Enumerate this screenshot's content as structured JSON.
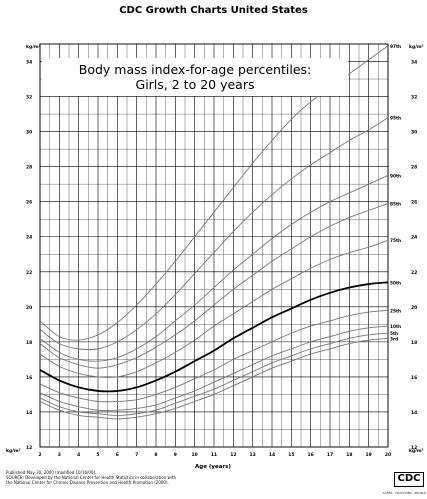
{
  "header": {
    "title": "CDC Growth Charts United States"
  },
  "chart_data": {
    "type": "line",
    "title": "Body mass index-for-age percentiles:",
    "subtitle": "Girls, 2 to 20 years",
    "xlabel": "Age (years)",
    "ylabel_top": "kg/m²",
    "ylabel_bottom": "kg/m²",
    "xlim": [
      2,
      20
    ],
    "ylim": [
      12,
      35
    ],
    "x_ticks": [
      2,
      3,
      4,
      5,
      6,
      7,
      8,
      9,
      10,
      11,
      12,
      13,
      14,
      15,
      16,
      17,
      18,
      19,
      20
    ],
    "y_ticks": [
      12,
      14,
      16,
      18,
      20,
      22,
      24,
      26,
      28,
      30,
      32,
      34
    ],
    "grid": true,
    "highlight_series": "50th",
    "series": [
      {
        "name": "97th",
        "x": [
          2,
          3,
          4,
          5,
          6,
          7,
          8,
          9,
          10,
          11,
          12,
          13,
          14,
          15,
          16,
          17,
          18,
          19,
          20
        ],
        "values": [
          19.2,
          18.3,
          18.1,
          18.4,
          19.1,
          20.1,
          21.3,
          22.6,
          24.0,
          25.4,
          26.8,
          28.2,
          29.5,
          30.7,
          31.7,
          32.5,
          33.3,
          34.1,
          34.9
        ]
      },
      {
        "name": "95th",
        "x": [
          2,
          3,
          4,
          5,
          6,
          7,
          8,
          9,
          10,
          11,
          12,
          13,
          14,
          15,
          16,
          17,
          18,
          19,
          20
        ],
        "values": [
          18.7,
          17.9,
          17.6,
          17.6,
          18.0,
          18.7,
          19.6,
          20.7,
          21.9,
          23.1,
          24.3,
          25.4,
          26.4,
          27.3,
          28.1,
          28.8,
          29.5,
          30.1,
          30.8
        ]
      },
      {
        "name": "90th",
        "x": [
          2,
          3,
          4,
          5,
          6,
          7,
          8,
          9,
          10,
          11,
          12,
          13,
          14,
          15,
          16,
          17,
          18,
          19,
          20
        ],
        "values": [
          18.2,
          17.4,
          17.0,
          16.9,
          17.1,
          17.6,
          18.3,
          19.2,
          20.1,
          21.1,
          22.1,
          23.0,
          23.9,
          24.7,
          25.4,
          26.0,
          26.5,
          27.0,
          27.5
        ]
      },
      {
        "name": "85th",
        "x": [
          2,
          3,
          4,
          5,
          6,
          7,
          8,
          9,
          10,
          11,
          12,
          13,
          14,
          15,
          16,
          17,
          18,
          19,
          20
        ],
        "values": [
          17.9,
          17.1,
          16.7,
          16.5,
          16.7,
          17.1,
          17.7,
          18.4,
          19.2,
          20.1,
          21.0,
          21.8,
          22.6,
          23.3,
          24.0,
          24.6,
          25.1,
          25.5,
          25.9
        ]
      },
      {
        "name": "75th",
        "x": [
          2,
          3,
          4,
          5,
          6,
          7,
          8,
          9,
          10,
          11,
          12,
          13,
          14,
          15,
          16,
          17,
          18,
          19,
          20
        ],
        "values": [
          17.3,
          16.6,
          16.2,
          16.0,
          16.0,
          16.3,
          16.8,
          17.4,
          18.1,
          18.9,
          19.6,
          20.3,
          21.0,
          21.6,
          22.2,
          22.7,
          23.1,
          23.4,
          23.8
        ]
      },
      {
        "name": "50th",
        "x": [
          2,
          3,
          4,
          5,
          6,
          7,
          8,
          9,
          10,
          11,
          12,
          13,
          14,
          15,
          16,
          17,
          18,
          19,
          20
        ],
        "values": [
          16.4,
          15.8,
          15.4,
          15.2,
          15.2,
          15.4,
          15.8,
          16.3,
          16.9,
          17.5,
          18.2,
          18.8,
          19.4,
          19.9,
          20.4,
          20.8,
          21.1,
          21.3,
          21.4
        ]
      },
      {
        "name": "25th",
        "x": [
          2,
          3,
          4,
          5,
          6,
          7,
          8,
          9,
          10,
          11,
          12,
          13,
          14,
          15,
          16,
          17,
          18,
          19,
          20
        ],
        "values": [
          15.6,
          15.1,
          14.8,
          14.6,
          14.6,
          14.7,
          15.0,
          15.4,
          15.9,
          16.4,
          17.0,
          17.5,
          18.0,
          18.5,
          18.9,
          19.2,
          19.5,
          19.7,
          19.8
        ]
      },
      {
        "name": "10th",
        "x": [
          2,
          3,
          4,
          5,
          6,
          7,
          8,
          9,
          10,
          11,
          12,
          13,
          14,
          15,
          16,
          17,
          18,
          19,
          20
        ],
        "values": [
          15.1,
          14.6,
          14.3,
          14.1,
          14.1,
          14.2,
          14.4,
          14.8,
          15.2,
          15.7,
          16.2,
          16.7,
          17.2,
          17.6,
          18.0,
          18.3,
          18.6,
          18.8,
          18.9
        ]
      },
      {
        "name": "5th",
        "x": [
          2,
          3,
          4,
          5,
          6,
          7,
          8,
          9,
          10,
          11,
          12,
          13,
          14,
          15,
          16,
          17,
          18,
          19,
          20
        ],
        "values": [
          14.8,
          14.3,
          14.0,
          13.9,
          13.8,
          13.9,
          14.1,
          14.5,
          14.9,
          15.3,
          15.8,
          16.3,
          16.8,
          17.2,
          17.6,
          17.9,
          18.2,
          18.4,
          18.5
        ]
      },
      {
        "name": "3rd",
        "x": [
          2,
          3,
          4,
          5,
          6,
          7,
          8,
          9,
          10,
          11,
          12,
          13,
          14,
          15,
          16,
          17,
          18,
          19,
          20
        ],
        "values": [
          14.6,
          14.1,
          13.8,
          13.7,
          13.6,
          13.7,
          13.9,
          14.2,
          14.6,
          15.0,
          15.5,
          16.0,
          16.5,
          16.9,
          17.3,
          17.6,
          17.9,
          18.1,
          18.2
        ]
      }
    ]
  },
  "footer": {
    "line1": "Published May 30, 2000 (modified 10/16/00).",
    "line2": "SOURCE: Developed by the National Center for Health Statistics in collaboration with",
    "line3": "the National Center for Chronic Disease Prevention and Health Promotion (2000).",
    "logo_text": "CDC",
    "tagline": "SAFER · HEALTHIER · PEOPLE"
  },
  "colors": {
    "curve": "#777777",
    "median": "#000000",
    "grid": "#000000",
    "background": "#ffffff"
  }
}
